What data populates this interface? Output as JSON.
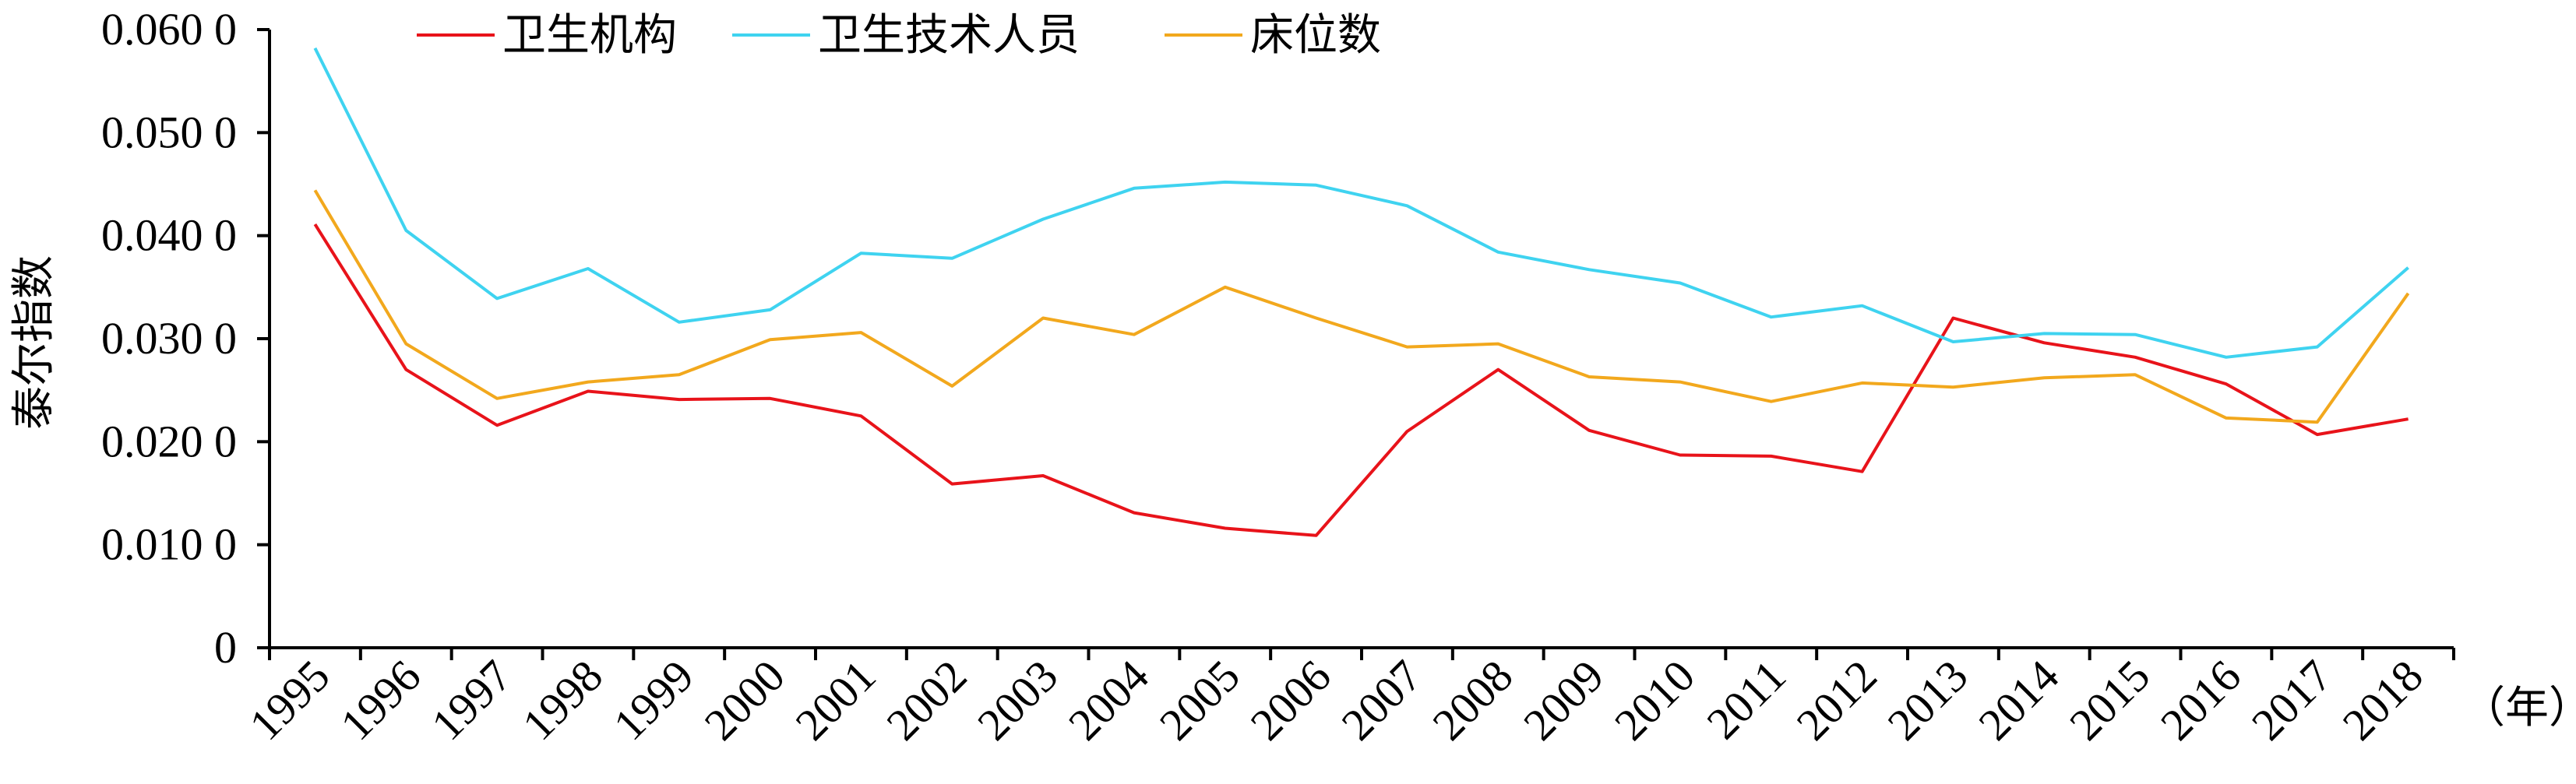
{
  "chart_data": {
    "type": "line",
    "title": "",
    "xlabel": "",
    "ylabel": "泰尔指数",
    "x_unit": "（年）",
    "categories": [
      "1995",
      "1996",
      "1997",
      "1998",
      "1999",
      "2000",
      "2001",
      "2002",
      "2003",
      "2004",
      "2005",
      "2006",
      "2007",
      "2008",
      "2009",
      "2010",
      "2011",
      "2012",
      "2013",
      "2014",
      "2015",
      "2016",
      "2017",
      "2018"
    ],
    "ylim": [
      0,
      0.06
    ],
    "yticks": [
      "0",
      "0.010 0",
      "0.020 0",
      "0.030 0",
      "0.040 0",
      "0.050 0",
      "0.060 0"
    ],
    "grid": false,
    "legend_position": "top-left",
    "series": [
      {
        "name": "卫生机构",
        "color": "#e8131a",
        "values": [
          0.0411,
          0.027,
          0.0216,
          0.0249,
          0.0241,
          0.0242,
          0.0225,
          0.0159,
          0.0167,
          0.0131,
          0.0116,
          0.0109,
          0.021,
          0.027,
          0.0211,
          0.0187,
          0.0186,
          0.0171,
          0.032,
          0.0296,
          0.0282,
          0.0256,
          0.0207,
          0.0222
        ]
      },
      {
        "name": "卫生技术人员",
        "color": "#3fd3f0",
        "values": [
          0.0582,
          0.0405,
          0.0339,
          0.0368,
          0.0316,
          0.0328,
          0.0383,
          0.0378,
          0.0416,
          0.0446,
          0.0452,
          0.0449,
          0.0429,
          0.0384,
          0.0367,
          0.0354,
          0.0321,
          0.0332,
          0.0297,
          0.0305,
          0.0304,
          0.0282,
          0.0292,
          0.0369
        ]
      },
      {
        "name": "床位数",
        "color": "#f2a81d",
        "values": [
          0.0444,
          0.0295,
          0.0242,
          0.0258,
          0.0265,
          0.0299,
          0.0306,
          0.0254,
          0.032,
          0.0304,
          0.035,
          0.032,
          0.0292,
          0.0295,
          0.0263,
          0.0258,
          0.0239,
          0.0257,
          0.0253,
          0.0262,
          0.0265,
          0.0223,
          0.0219,
          0.0344
        ]
      }
    ]
  }
}
